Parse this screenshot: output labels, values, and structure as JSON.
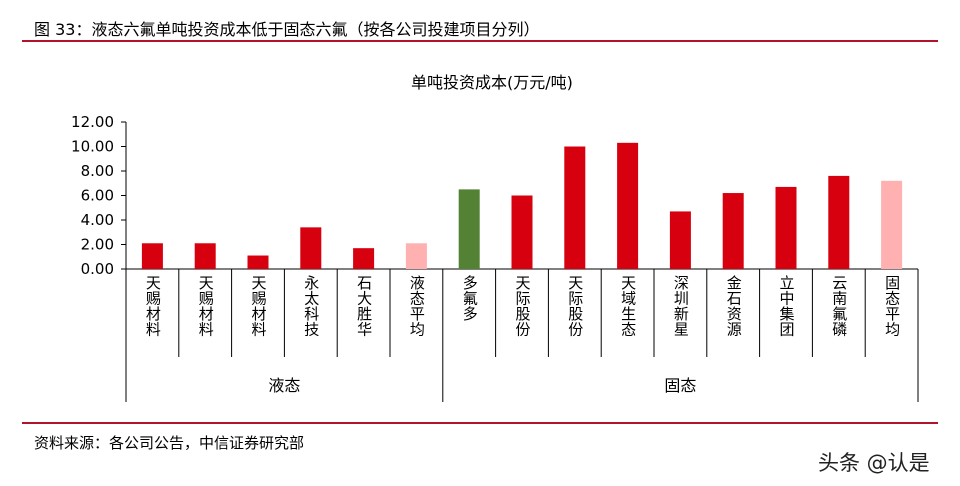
{
  "figure": {
    "title": "图 33：液态六氟单吨投资成本低于固态六氟（按各公司投建项目分列）",
    "source": "资料来源：各公司公告，中信证券研究部",
    "watermark": "头条 @认是"
  },
  "chart_data": {
    "type": "bar",
    "title": "单吨投资成本(万元/吨)",
    "xlabel": "",
    "ylabel": "",
    "ylim": [
      0,
      12
    ],
    "yticks": [
      "0.00",
      "2.00",
      "4.00",
      "6.00",
      "8.00",
      "10.00",
      "12.00"
    ],
    "categories": [
      "天赐材料",
      "天赐材料",
      "天赐材料",
      "永太科技",
      "石大胜华",
      "液态平均",
      "多氟多",
      "天际股份",
      "天际股份",
      "天域生态",
      "深圳新星",
      "金石资源",
      "立中集团",
      "云南氟磷",
      "固态平均"
    ],
    "values": [
      2.1,
      2.1,
      1.1,
      3.4,
      1.7,
      2.1,
      6.5,
      6.0,
      10.0,
      10.3,
      4.7,
      6.2,
      6.7,
      7.6,
      7.2
    ],
    "groups": [
      {
        "label": "液态",
        "start": 0,
        "end": 5
      },
      {
        "label": "固态",
        "start": 6,
        "end": 14
      }
    ],
    "bar_colors": [
      "#d7000f",
      "#d7000f",
      "#d7000f",
      "#d7000f",
      "#d7000f",
      "#ffb0b0",
      "#548235",
      "#d7000f",
      "#d7000f",
      "#d7000f",
      "#d7000f",
      "#d7000f",
      "#d7000f",
      "#d7000f",
      "#ffb0b0"
    ],
    "grid": false,
    "legend": "none"
  }
}
